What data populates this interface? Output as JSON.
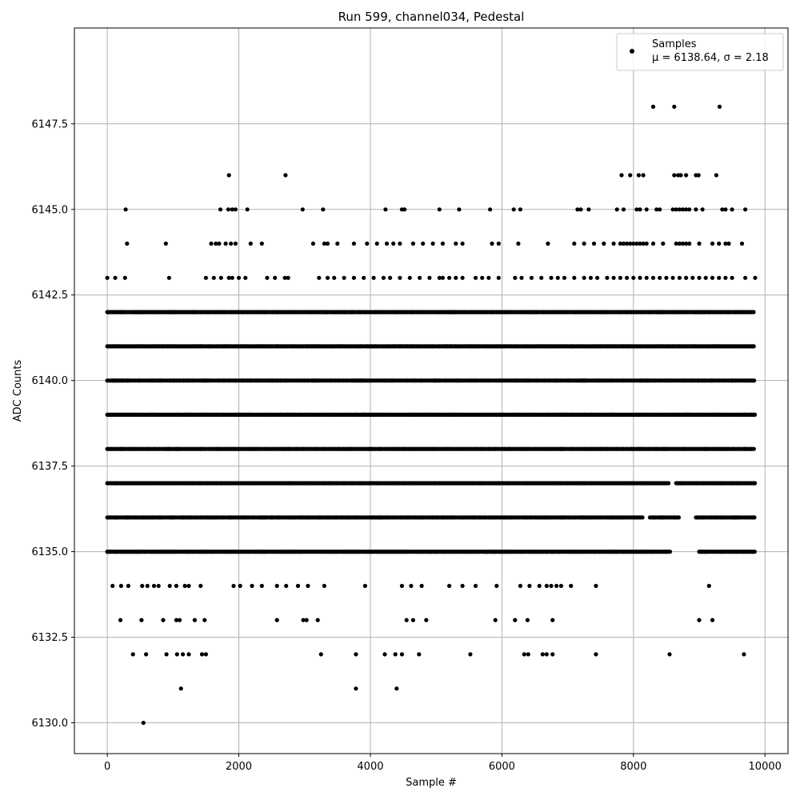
{
  "chart_data": {
    "type": "scatter",
    "title": "Run 599, channel034, Pedestal",
    "xlabel": "Sample #",
    "ylabel": "ADC Counts",
    "xlim": [
      -500,
      10350
    ],
    "ylim": [
      6129.1,
      6150.3
    ],
    "xticks": [
      0,
      2000,
      4000,
      6000,
      8000,
      10000
    ],
    "yticks": [
      6130.0,
      6132.5,
      6135.0,
      6137.5,
      6140.0,
      6142.5,
      6145.0,
      6147.5
    ],
    "xtick_labels": [
      "0",
      "2000",
      "4000",
      "6000",
      "8000",
      "10000"
    ],
    "ytick_labels": [
      "6130.0",
      "6132.5",
      "6135.0",
      "6137.5",
      "6140.0",
      "6142.5",
      "6145.0",
      "6147.5"
    ],
    "grid": true,
    "legend": {
      "position": "top-right",
      "label": "Samples",
      "stats_text": "μ = 6138.64, σ = 2.18"
    },
    "marker_color": "#000000",
    "series": [
      {
        "name": "Samples",
        "bands": [
          {
            "y": 6135,
            "segments": [
              [
                0,
                8570
              ],
              [
                9000,
                9850
              ]
            ]
          },
          {
            "y": 6136,
            "segments": [
              [
                0,
                8150
              ],
              [
                8250,
                8700
              ],
              [
                8950,
                9850
              ]
            ]
          },
          {
            "y": 6137,
            "segments": [
              [
                0,
                8550
              ],
              [
                8650,
                9850
              ]
            ]
          },
          {
            "y": 6138,
            "segments": [
              [
                0,
                9850
              ]
            ]
          },
          {
            "y": 6139,
            "segments": [
              [
                0,
                9850
              ]
            ]
          },
          {
            "y": 6140,
            "segments": [
              [
                0,
                9850
              ]
            ]
          },
          {
            "y": 6141,
            "segments": [
              [
                0,
                9850
              ]
            ]
          },
          {
            "y": 6142,
            "segments": [
              [
                0,
                9850
              ]
            ]
          }
        ],
        "points": [
          [
            0,
            6143
          ],
          [
            120,
            6143
          ],
          [
            270,
            6143
          ],
          [
            940,
            6143
          ],
          [
            1500,
            6143
          ],
          [
            1620,
            6143
          ],
          [
            1730,
            6143
          ],
          [
            1850,
            6143
          ],
          [
            1900,
            6143
          ],
          [
            2000,
            6143
          ],
          [
            2100,
            6143
          ],
          [
            2430,
            6143
          ],
          [
            2550,
            6143
          ],
          [
            2700,
            6143
          ],
          [
            2750,
            6143
          ],
          [
            3220,
            6143
          ],
          [
            3350,
            6143
          ],
          [
            3450,
            6143
          ],
          [
            3600,
            6143
          ],
          [
            3750,
            6143
          ],
          [
            3900,
            6143
          ],
          [
            4050,
            6143
          ],
          [
            4200,
            6143
          ],
          [
            4300,
            6143
          ],
          [
            4450,
            6143
          ],
          [
            4600,
            6143
          ],
          [
            4750,
            6143
          ],
          [
            4900,
            6143
          ],
          [
            5050,
            6143
          ],
          [
            5100,
            6143
          ],
          [
            5200,
            6143
          ],
          [
            5300,
            6143
          ],
          [
            5400,
            6143
          ],
          [
            5600,
            6143
          ],
          [
            5700,
            6143
          ],
          [
            5800,
            6143
          ],
          [
            5950,
            6143
          ],
          [
            6200,
            6143
          ],
          [
            6300,
            6143
          ],
          [
            6450,
            6143
          ],
          [
            6600,
            6143
          ],
          [
            6750,
            6143
          ],
          [
            6850,
            6143
          ],
          [
            6950,
            6143
          ],
          [
            7100,
            6143
          ],
          [
            7250,
            6143
          ],
          [
            7350,
            6143
          ],
          [
            7450,
            6143
          ],
          [
            7600,
            6143
          ],
          [
            7700,
            6143
          ],
          [
            7800,
            6143
          ],
          [
            7900,
            6143
          ],
          [
            8000,
            6143
          ],
          [
            8100,
            6143
          ],
          [
            8200,
            6143
          ],
          [
            8300,
            6143
          ],
          [
            8400,
            6143
          ],
          [
            8500,
            6143
          ],
          [
            8600,
            6143
          ],
          [
            8700,
            6143
          ],
          [
            8800,
            6143
          ],
          [
            8900,
            6143
          ],
          [
            9000,
            6143
          ],
          [
            9100,
            6143
          ],
          [
            9200,
            6143
          ],
          [
            9300,
            6143
          ],
          [
            9400,
            6143
          ],
          [
            9500,
            6143
          ],
          [
            9700,
            6143
          ],
          [
            9850,
            6143
          ],
          [
            300,
            6144
          ],
          [
            890,
            6144
          ],
          [
            1580,
            6144
          ],
          [
            1650,
            6144
          ],
          [
            1700,
            6144
          ],
          [
            1800,
            6144
          ],
          [
            1880,
            6144
          ],
          [
            1950,
            6144
          ],
          [
            2180,
            6144
          ],
          [
            2350,
            6144
          ],
          [
            3130,
            6144
          ],
          [
            3300,
            6144
          ],
          [
            3350,
            6144
          ],
          [
            3500,
            6144
          ],
          [
            3750,
            6144
          ],
          [
            3950,
            6144
          ],
          [
            4100,
            6144
          ],
          [
            4250,
            6144
          ],
          [
            4350,
            6144
          ],
          [
            4450,
            6144
          ],
          [
            4650,
            6144
          ],
          [
            4800,
            6144
          ],
          [
            4950,
            6144
          ],
          [
            5100,
            6144
          ],
          [
            5300,
            6144
          ],
          [
            5400,
            6144
          ],
          [
            5850,
            6144
          ],
          [
            5950,
            6144
          ],
          [
            6250,
            6144
          ],
          [
            6700,
            6144
          ],
          [
            7100,
            6144
          ],
          [
            7250,
            6144
          ],
          [
            7400,
            6144
          ],
          [
            7550,
            6144
          ],
          [
            7700,
            6144
          ],
          [
            7800,
            6144
          ],
          [
            7850,
            6144
          ],
          [
            7900,
            6144
          ],
          [
            7950,
            6144
          ],
          [
            8000,
            6144
          ],
          [
            8050,
            6144
          ],
          [
            8100,
            6144
          ],
          [
            8150,
            6144
          ],
          [
            8200,
            6144
          ],
          [
            8300,
            6144
          ],
          [
            8450,
            6144
          ],
          [
            8650,
            6144
          ],
          [
            8700,
            6144
          ],
          [
            8750,
            6144
          ],
          [
            8800,
            6144
          ],
          [
            8850,
            6144
          ],
          [
            9000,
            6144
          ],
          [
            9200,
            6144
          ],
          [
            9300,
            6144
          ],
          [
            9400,
            6144
          ],
          [
            9450,
            6144
          ],
          [
            9650,
            6144
          ],
          [
            280,
            6145
          ],
          [
            1720,
            6145
          ],
          [
            1840,
            6145
          ],
          [
            1900,
            6145
          ],
          [
            1950,
            6145
          ],
          [
            2130,
            6145
          ],
          [
            2970,
            6145
          ],
          [
            3280,
            6145
          ],
          [
            4230,
            6145
          ],
          [
            4480,
            6145
          ],
          [
            4520,
            6145
          ],
          [
            5050,
            6145
          ],
          [
            5350,
            6145
          ],
          [
            5820,
            6145
          ],
          [
            6180,
            6145
          ],
          [
            6280,
            6145
          ],
          [
            7150,
            6145
          ],
          [
            7200,
            6145
          ],
          [
            7320,
            6145
          ],
          [
            7750,
            6145
          ],
          [
            7850,
            6145
          ],
          [
            8050,
            6145
          ],
          [
            8100,
            6145
          ],
          [
            8200,
            6145
          ],
          [
            8350,
            6145
          ],
          [
            8400,
            6145
          ],
          [
            8600,
            6145
          ],
          [
            8650,
            6145
          ],
          [
            8700,
            6145
          ],
          [
            8750,
            6145
          ],
          [
            8800,
            6145
          ],
          [
            8850,
            6145
          ],
          [
            8950,
            6145
          ],
          [
            9050,
            6145
          ],
          [
            9350,
            6145
          ],
          [
            9400,
            6145
          ],
          [
            9500,
            6145
          ],
          [
            9700,
            6145
          ],
          [
            1850,
            6146
          ],
          [
            2710,
            6146
          ],
          [
            7820,
            6146
          ],
          [
            7950,
            6146
          ],
          [
            8080,
            6146
          ],
          [
            8150,
            6146
          ],
          [
            8620,
            6146
          ],
          [
            8680,
            6146
          ],
          [
            8720,
            6146
          ],
          [
            8800,
            6146
          ],
          [
            8950,
            6146
          ],
          [
            8990,
            6146
          ],
          [
            9260,
            6146
          ],
          [
            8300,
            6148
          ],
          [
            8620,
            6148
          ],
          [
            9310,
            6148
          ],
          [
            80,
            6134
          ],
          [
            210,
            6134
          ],
          [
            320,
            6134
          ],
          [
            530,
            6134
          ],
          [
            610,
            6134
          ],
          [
            710,
            6134
          ],
          [
            780,
            6134
          ],
          [
            950,
            6134
          ],
          [
            1050,
            6134
          ],
          [
            1180,
            6134
          ],
          [
            1240,
            6134
          ],
          [
            1420,
            6134
          ],
          [
            1920,
            6134
          ],
          [
            2020,
            6134
          ],
          [
            2200,
            6134
          ],
          [
            2350,
            6134
          ],
          [
            2580,
            6134
          ],
          [
            2720,
            6134
          ],
          [
            2900,
            6134
          ],
          [
            3050,
            6134
          ],
          [
            3300,
            6134
          ],
          [
            3920,
            6134
          ],
          [
            4480,
            6134
          ],
          [
            4620,
            6134
          ],
          [
            4780,
            6134
          ],
          [
            5200,
            6134
          ],
          [
            5400,
            6134
          ],
          [
            5600,
            6134
          ],
          [
            5920,
            6134
          ],
          [
            6280,
            6134
          ],
          [
            6420,
            6134
          ],
          [
            6570,
            6134
          ],
          [
            6680,
            6134
          ],
          [
            6750,
            6134
          ],
          [
            6830,
            6134
          ],
          [
            6900,
            6134
          ],
          [
            7050,
            6134
          ],
          [
            7430,
            6134
          ],
          [
            9150,
            6134
          ],
          [
            200,
            6133
          ],
          [
            520,
            6133
          ],
          [
            850,
            6133
          ],
          [
            1050,
            6133
          ],
          [
            1100,
            6133
          ],
          [
            1330,
            6133
          ],
          [
            1480,
            6133
          ],
          [
            2580,
            6133
          ],
          [
            2980,
            6133
          ],
          [
            3030,
            6133
          ],
          [
            3200,
            6133
          ],
          [
            4550,
            6133
          ],
          [
            4650,
            6133
          ],
          [
            4850,
            6133
          ],
          [
            5900,
            6133
          ],
          [
            6200,
            6133
          ],
          [
            6390,
            6133
          ],
          [
            6770,
            6133
          ],
          [
            9000,
            6133
          ],
          [
            9200,
            6133
          ],
          [
            390,
            6132
          ],
          [
            590,
            6132
          ],
          [
            900,
            6132
          ],
          [
            1060,
            6132
          ],
          [
            1150,
            6132
          ],
          [
            1240,
            6132
          ],
          [
            1440,
            6132
          ],
          [
            1500,
            6132
          ],
          [
            3250,
            6132
          ],
          [
            3780,
            6132
          ],
          [
            4220,
            6132
          ],
          [
            4380,
            6132
          ],
          [
            4480,
            6132
          ],
          [
            4740,
            6132
          ],
          [
            5520,
            6132
          ],
          [
            6340,
            6132
          ],
          [
            6400,
            6132
          ],
          [
            6620,
            6132
          ],
          [
            6680,
            6132
          ],
          [
            6770,
            6132
          ],
          [
            7430,
            6132
          ],
          [
            8550,
            6132
          ],
          [
            9680,
            6132
          ],
          [
            1120,
            6131
          ],
          [
            3780,
            6131
          ],
          [
            4400,
            6131
          ],
          [
            550,
            6130
          ]
        ]
      }
    ]
  }
}
